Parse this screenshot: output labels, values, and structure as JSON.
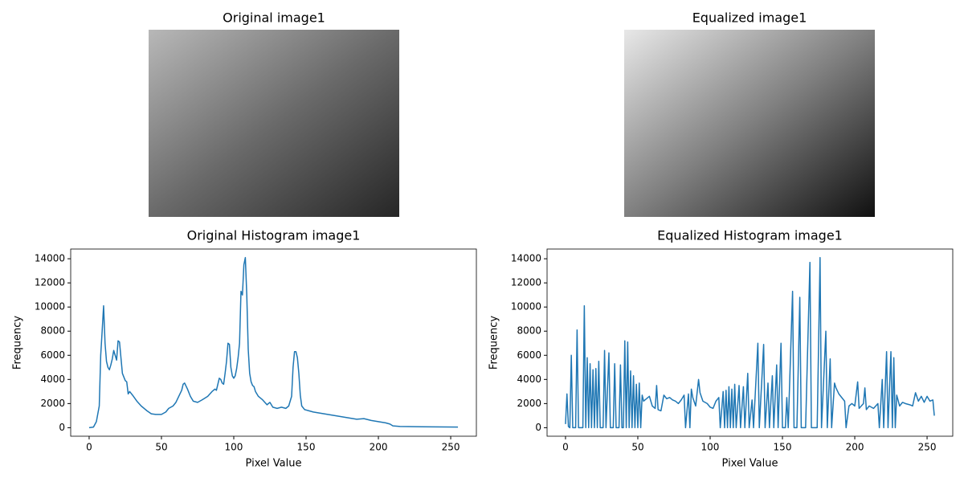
{
  "chart_data": [
    {
      "type": "image",
      "title": "Original image1"
    },
    {
      "type": "image",
      "title": "Equalized image1"
    },
    {
      "type": "line",
      "title": "Original Histogram image1",
      "xlabel": "Pixel Value",
      "ylabel": "Frequency",
      "color": "#1f77b4",
      "xlim": [
        -12.75,
        267.75
      ],
      "ylim": [
        -705,
        14805
      ],
      "xticks": [
        0,
        50,
        100,
        150,
        200,
        250
      ],
      "yticks": [
        0,
        2000,
        4000,
        6000,
        8000,
        10000,
        12000,
        14000
      ],
      "x": [
        0,
        3,
        5,
        7,
        8,
        9,
        10,
        11,
        12,
        13,
        14,
        15,
        16,
        17,
        18,
        19,
        20,
        21,
        22,
        23,
        25,
        26,
        27,
        28,
        30,
        33,
        36,
        40,
        43,
        46,
        50,
        53,
        55,
        58,
        60,
        62,
        64,
        65,
        66,
        68,
        70,
        72,
        75,
        78,
        82,
        85,
        87,
        88,
        89,
        90,
        91,
        92,
        93,
        94,
        95,
        96,
        97,
        98,
        99,
        100,
        101,
        102,
        103,
        104,
        105,
        106,
        107,
        108,
        109,
        110,
        111,
        112,
        113,
        114,
        115,
        117,
        120,
        123,
        125,
        127,
        130,
        133,
        136,
        138,
        140,
        141,
        142,
        143,
        144,
        145,
        146,
        147,
        149,
        152,
        155,
        160,
        165,
        170,
        175,
        180,
        185,
        190,
        195,
        200,
        205,
        208,
        210,
        215,
        230,
        255
      ],
      "values": [
        0,
        50,
        500,
        1800,
        6000,
        8000,
        10100,
        7000,
        5500,
        5000,
        4800,
        5200,
        5700,
        6400,
        6000,
        5600,
        7200,
        7100,
        5800,
        4500,
        3900,
        3800,
        2800,
        3000,
        2700,
        2200,
        1800,
        1400,
        1150,
        1100,
        1100,
        1300,
        1600,
        1800,
        2100,
        2600,
        3100,
        3600,
        3700,
        3200,
        2600,
        2200,
        2100,
        2300,
        2600,
        3000,
        3200,
        3100,
        3600,
        4100,
        4000,
        3700,
        3600,
        4500,
        5500,
        7000,
        6900,
        5000,
        4300,
        4100,
        4300,
        4900,
        5800,
        7000,
        11300,
        11000,
        13500,
        14100,
        11000,
        6500,
        4500,
        3800,
        3500,
        3400,
        3000,
        2600,
        2300,
        1900,
        2100,
        1700,
        1600,
        1700,
        1600,
        1800,
        2600,
        5000,
        6300,
        6300,
        5800,
        4500,
        2700,
        1800,
        1500,
        1400,
        1300,
        1200,
        1100,
        1000,
        900,
        800,
        700,
        750,
        600,
        500,
        400,
        300,
        150,
        100,
        80,
        50
      ]
    },
    {
      "type": "line",
      "title": "Equalized Histogram image1",
      "xlabel": "Pixel Value",
      "ylabel": "Frequency",
      "color": "#1f77b4",
      "xlim": [
        -12.75,
        267.75
      ],
      "ylim": [
        -705,
        14805
      ],
      "xticks": [
        0,
        50,
        100,
        150,
        200,
        250
      ],
      "yticks": [
        0,
        2000,
        4000,
        6000,
        8000,
        10000,
        12000,
        14000
      ],
      "x": [
        0,
        1,
        2,
        3,
        4,
        5,
        7,
        8,
        9,
        12,
        13,
        14,
        15,
        16,
        17,
        18,
        19,
        20,
        21,
        22,
        23,
        24,
        26,
        27,
        28,
        30,
        31,
        33,
        34,
        35,
        37,
        38,
        39,
        40,
        41,
        42,
        43,
        44,
        45,
        46,
        47,
        48,
        49,
        50,
        51,
        52,
        53,
        54,
        56,
        58,
        60,
        62,
        63,
        64,
        66,
        68,
        70,
        72,
        74,
        76,
        78,
        80,
        82,
        83,
        85,
        86,
        87,
        88,
        90,
        92,
        93,
        95,
        98,
        100,
        102,
        104,
        106,
        107,
        109,
        110,
        111,
        112,
        113,
        114,
        115,
        116,
        117,
        118,
        120,
        121,
        123,
        124,
        126,
        127,
        129,
        130,
        133,
        134,
        137,
        138,
        140,
        141,
        143,
        144,
        146,
        147,
        149,
        150,
        152,
        153,
        154,
        157,
        158,
        160,
        162,
        163,
        166,
        169,
        170,
        174,
        176,
        177,
        180,
        181,
        183,
        184,
        186,
        187,
        189,
        191,
        193,
        194,
        196,
        198,
        200,
        202,
        203,
        206,
        207,
        208,
        210,
        213,
        216,
        217,
        219,
        220,
        222,
        223,
        225,
        226,
        227,
        228,
        229,
        231,
        233,
        235,
        238,
        240,
        242,
        244,
        246,
        248,
        250,
        252,
        254,
        255
      ],
      "values": [
        300,
        2800,
        100,
        0,
        6000,
        0,
        0,
        8100,
        0,
        0,
        10100,
        0,
        5800,
        0,
        5300,
        0,
        4800,
        0,
        4900,
        0,
        5500,
        0,
        0,
        6400,
        0,
        6200,
        0,
        0,
        5300,
        0,
        0,
        5200,
        0,
        0,
        7200,
        0,
        7100,
        0,
        4700,
        0,
        4300,
        0,
        3600,
        0,
        3700,
        0,
        2700,
        2200,
        2400,
        2600,
        1800,
        1600,
        3500,
        1500,
        1400,
        2700,
        2400,
        2500,
        2300,
        2200,
        2000,
        2300,
        2700,
        0,
        2800,
        0,
        3200,
        2500,
        1800,
        4000,
        2900,
        2200,
        2000,
        1700,
        1600,
        2200,
        2500,
        0,
        3000,
        0,
        3100,
        0,
        3400,
        0,
        3200,
        0,
        3600,
        0,
        3500,
        0,
        3400,
        0,
        4500,
        0,
        2300,
        0,
        7000,
        0,
        6900,
        0,
        3700,
        0,
        4300,
        0,
        5200,
        0,
        7000,
        0,
        0,
        2500,
        0,
        11300,
        0,
        0,
        10800,
        0,
        0,
        13700,
        0,
        0,
        14100,
        0,
        8000,
        0,
        5700,
        0,
        3700,
        3300,
        2800,
        2500,
        2200,
        0,
        1800,
        2000,
        1800,
        3800,
        1600,
        2000,
        3300,
        1500,
        1800,
        1600,
        2000,
        0,
        4000,
        0,
        6300,
        0,
        6300,
        0,
        5800,
        0,
        2700,
        1800,
        2100,
        2000,
        1900,
        1800,
        2900,
        2200,
        2600,
        2100,
        2600,
        2200,
        2300,
        1000
      ]
    }
  ]
}
